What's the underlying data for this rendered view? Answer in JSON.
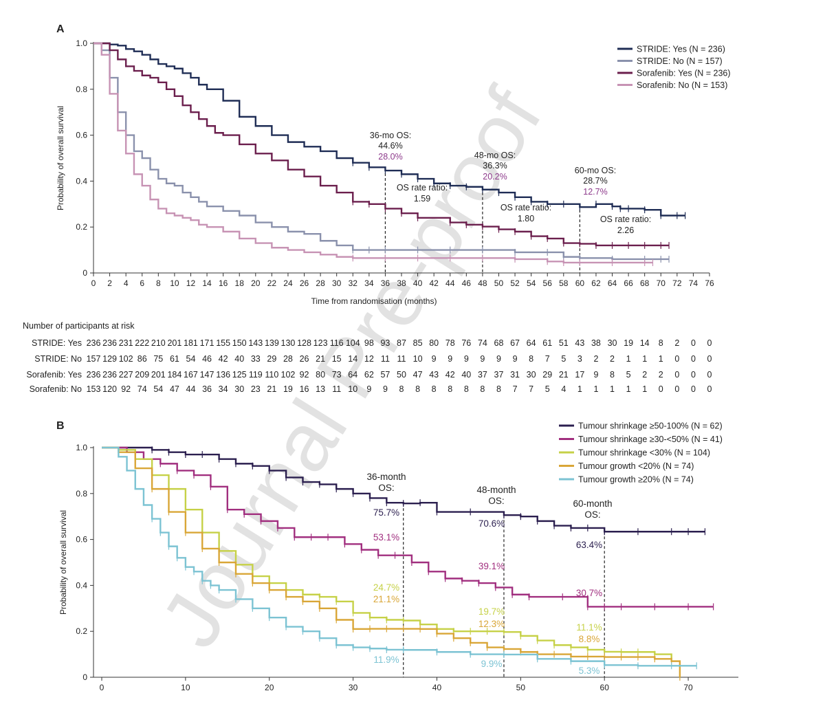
{
  "watermark": "Journal Pre-proof",
  "chart_data": [
    {
      "panel": "A",
      "type": "line",
      "xlabel": "Time from randomisation (months)",
      "ylabel": "Probability of overall survival",
      "xlim": [
        0,
        76
      ],
      "ylim": [
        0,
        1.0
      ],
      "xticks": [
        "0",
        "2",
        "4",
        "6",
        "8",
        "10",
        "12",
        "14",
        "16",
        "18",
        "20",
        "22",
        "24",
        "26",
        "28",
        "30",
        "32",
        "34",
        "36",
        "38",
        "40",
        "42",
        "44",
        "46",
        "48",
        "50",
        "52",
        "54",
        "56",
        "58",
        "60",
        "62",
        "64",
        "66",
        "68",
        "70",
        "72",
        "74",
        "76"
      ],
      "yticks": [
        "0",
        "0.2",
        "0.4",
        "0.6",
        "0.8",
        "1.0"
      ],
      "series": [
        {
          "name": "STRIDE: Yes (N = 236)",
          "color": "#1f2d55",
          "x": [
            0,
            2,
            3,
            4,
            5,
            6,
            7,
            8,
            9,
            10,
            11,
            12,
            13,
            14,
            16,
            18,
            20,
            22,
            24,
            26,
            28,
            30,
            32,
            34,
            36,
            38,
            40,
            42,
            44,
            46,
            48,
            50,
            52,
            54,
            56,
            58,
            60,
            62,
            64,
            65,
            66,
            68,
            70,
            72,
            73
          ],
          "y": [
            1.0,
            0.995,
            0.99,
            0.975,
            0.965,
            0.95,
            0.93,
            0.91,
            0.9,
            0.89,
            0.87,
            0.85,
            0.82,
            0.8,
            0.75,
            0.68,
            0.64,
            0.6,
            0.57,
            0.55,
            0.53,
            0.5,
            0.48,
            0.46,
            0.446,
            0.43,
            0.41,
            0.39,
            0.38,
            0.375,
            0.363,
            0.35,
            0.33,
            0.31,
            0.3,
            0.3,
            0.287,
            0.3,
            0.29,
            0.28,
            0.28,
            0.275,
            0.25,
            0.25,
            0.25
          ]
        },
        {
          "name": "STRIDE: No (N = 157)",
          "color": "#8a91ac",
          "x": [
            0,
            1,
            2,
            3,
            4,
            5,
            6,
            7,
            8,
            9,
            10,
            11,
            12,
            13,
            14,
            16,
            18,
            20,
            22,
            24,
            26,
            28,
            30,
            32,
            34,
            36,
            40,
            44,
            48,
            52,
            56,
            58,
            60,
            64,
            68,
            70,
            71
          ],
          "y": [
            1.0,
            0.97,
            0.85,
            0.7,
            0.6,
            0.53,
            0.5,
            0.45,
            0.41,
            0.39,
            0.38,
            0.35,
            0.33,
            0.31,
            0.29,
            0.27,
            0.25,
            0.22,
            0.2,
            0.18,
            0.17,
            0.14,
            0.12,
            0.1,
            0.1,
            0.1,
            0.1,
            0.1,
            0.1,
            0.09,
            0.09,
            0.07,
            0.065,
            0.06,
            0.06,
            0.06,
            0.06
          ]
        },
        {
          "name": "Sorafenib: Yes (N = 236)",
          "color": "#6b1f4d",
          "x": [
            0,
            1,
            2,
            3,
            4,
            5,
            6,
            7,
            8,
            9,
            10,
            11,
            12,
            13,
            14,
            15,
            16,
            18,
            20,
            22,
            24,
            26,
            28,
            30,
            32,
            34,
            36,
            38,
            40,
            44,
            46,
            48,
            50,
            52,
            54,
            56,
            58,
            60,
            62,
            64,
            66,
            68,
            70,
            71
          ],
          "y": [
            1.0,
            1.0,
            0.97,
            0.93,
            0.9,
            0.88,
            0.86,
            0.85,
            0.83,
            0.8,
            0.77,
            0.73,
            0.7,
            0.67,
            0.64,
            0.61,
            0.6,
            0.56,
            0.52,
            0.49,
            0.45,
            0.42,
            0.38,
            0.35,
            0.31,
            0.3,
            0.28,
            0.26,
            0.24,
            0.22,
            0.21,
            0.202,
            0.19,
            0.18,
            0.16,
            0.15,
            0.13,
            0.127,
            0.12,
            0.12,
            0.12,
            0.12,
            0.12,
            0.12
          ]
        },
        {
          "name": "Sorafenib: No (N = 153)",
          "color": "#c793b4",
          "x": [
            0,
            1,
            2,
            3,
            4,
            5,
            6,
            7,
            8,
            9,
            10,
            11,
            12,
            13,
            14,
            16,
            18,
            20,
            22,
            24,
            26,
            28,
            30,
            32,
            36,
            40,
            44,
            48,
            52,
            56,
            58,
            60,
            64,
            68,
            69
          ],
          "y": [
            1.0,
            0.95,
            0.78,
            0.62,
            0.52,
            0.43,
            0.38,
            0.32,
            0.28,
            0.26,
            0.25,
            0.24,
            0.23,
            0.21,
            0.2,
            0.18,
            0.15,
            0.13,
            0.11,
            0.1,
            0.09,
            0.08,
            0.07,
            0.065,
            0.065,
            0.065,
            0.065,
            0.065,
            0.06,
            0.05,
            0.045,
            0.045,
            0.045,
            0.045,
            0.045
          ]
        }
      ],
      "legend": [
        "STRIDE: Yes (N = 236)",
        "STRIDE: No (N = 157)",
        "Sorafenib: Yes (N = 236)",
        "Sorafenib: No (N = 153)"
      ],
      "annotations": [
        {
          "title": "36-mo OS:",
          "v1": "44.6%",
          "v2": "28.0%",
          "ratio_label": "OS rate ratio:",
          "ratio": "1.59",
          "x": 36
        },
        {
          "title": "48-mo OS:",
          "v1": "36.3%",
          "v2": "20.2%",
          "ratio_label": "OS rate ratio:",
          "ratio": "1.80",
          "x": 48
        },
        {
          "title": "60-mo OS:",
          "v1": "28.7%",
          "v2": "12.7%",
          "ratio_label": "OS rate ratio:",
          "ratio": "2.26",
          "x": 60
        }
      ]
    },
    {
      "panel": "B",
      "type": "line",
      "xlabel": "",
      "ylabel": "Probability of overall survival",
      "xlim": [
        0,
        75
      ],
      "ylim": [
        0,
        1.0
      ],
      "xticks": [
        "0",
        "10",
        "20",
        "30",
        "40",
        "50",
        "60",
        "70"
      ],
      "yticks": [
        "0",
        "0.2",
        "0.4",
        "0.6",
        "0.8",
        "1.0"
      ],
      "series": [
        {
          "name": "Tumour shrinkage ≥50-100% (N = 62)",
          "color": "#2b1f4f",
          "x": [
            0,
            4,
            6,
            8,
            10,
            12,
            14,
            16,
            18,
            20,
            22,
            24,
            26,
            28,
            30,
            32,
            34,
            36,
            38,
            40,
            44,
            48,
            50,
            52,
            54,
            56,
            58,
            60,
            64,
            68,
            70,
            72
          ],
          "y": [
            1.0,
            1.0,
            0.99,
            0.98,
            0.97,
            0.97,
            0.95,
            0.93,
            0.92,
            0.9,
            0.87,
            0.85,
            0.84,
            0.82,
            0.8,
            0.78,
            0.76,
            0.757,
            0.76,
            0.72,
            0.72,
            0.706,
            0.7,
            0.68,
            0.66,
            0.65,
            0.65,
            0.634,
            0.634,
            0.634,
            0.634,
            0.634
          ]
        },
        {
          "name": "Tumour shrinkage ≥30-<50% (N = 41)",
          "color": "#a12f7f",
          "x": [
            0,
            3,
            5,
            7,
            9,
            11,
            13,
            15,
            17,
            19,
            21,
            23,
            25,
            27,
            29,
            31,
            33,
            35,
            37,
            39,
            41,
            43,
            45,
            47,
            49,
            51,
            55,
            58,
            60,
            62,
            66,
            70,
            73
          ],
          "y": [
            1.0,
            0.98,
            0.95,
            0.93,
            0.9,
            0.88,
            0.83,
            0.73,
            0.71,
            0.68,
            0.65,
            0.61,
            0.61,
            0.61,
            0.58,
            0.555,
            0.531,
            0.531,
            0.5,
            0.46,
            0.43,
            0.42,
            0.41,
            0.391,
            0.36,
            0.35,
            0.35,
            0.307,
            0.307,
            0.307,
            0.307,
            0.307,
            0.307
          ]
        },
        {
          "name": "Tumour shrinkage <30% (N = 104)",
          "color": "#c6d147",
          "x": [
            0,
            2,
            4,
            6,
            8,
            10,
            12,
            14,
            16,
            18,
            20,
            22,
            24,
            26,
            28,
            30,
            32,
            34,
            36,
            38,
            40,
            42,
            44,
            46,
            48,
            50,
            52,
            54,
            56,
            58,
            60,
            62,
            64,
            66,
            68
          ],
          "y": [
            1.0,
            0.99,
            0.95,
            0.88,
            0.82,
            0.73,
            0.63,
            0.55,
            0.49,
            0.44,
            0.41,
            0.38,
            0.36,
            0.35,
            0.33,
            0.28,
            0.26,
            0.25,
            0.247,
            0.23,
            0.21,
            0.2,
            0.2,
            0.2,
            0.197,
            0.18,
            0.16,
            0.14,
            0.13,
            0.12,
            0.111,
            0.11,
            0.11,
            0.1,
            0.08
          ]
        },
        {
          "name": "Tumour growth <20% (N = 74)",
          "color": "#d9a637",
          "x": [
            0,
            2,
            4,
            6,
            8,
            10,
            12,
            14,
            16,
            18,
            20,
            22,
            24,
            26,
            28,
            30,
            32,
            34,
            36,
            38,
            40,
            42,
            44,
            46,
            48,
            50,
            52,
            54,
            56,
            58,
            60,
            62,
            64,
            66,
            68,
            69
          ],
          "y": [
            1.0,
            0.98,
            0.91,
            0.82,
            0.72,
            0.63,
            0.56,
            0.5,
            0.45,
            0.41,
            0.38,
            0.35,
            0.33,
            0.3,
            0.25,
            0.21,
            0.211,
            0.211,
            0.211,
            0.21,
            0.19,
            0.17,
            0.15,
            0.13,
            0.123,
            0.11,
            0.1,
            0.1,
            0.09,
            0.09,
            0.088,
            0.088,
            0.088,
            0.08,
            0.07,
            0.0
          ]
        },
        {
          "name": "Tumour growth ≥20% (N = 74)",
          "color": "#7cc3d3",
          "x": [
            0,
            2,
            3,
            4,
            5,
            6,
            7,
            8,
            9,
            10,
            11,
            12,
            13,
            14,
            16,
            18,
            20,
            22,
            24,
            26,
            28,
            30,
            32,
            34,
            36,
            40,
            44,
            48,
            52,
            56,
            60,
            64,
            68,
            71
          ],
          "y": [
            1.0,
            0.96,
            0.9,
            0.82,
            0.75,
            0.69,
            0.63,
            0.57,
            0.52,
            0.48,
            0.46,
            0.42,
            0.4,
            0.38,
            0.34,
            0.3,
            0.26,
            0.22,
            0.2,
            0.17,
            0.14,
            0.13,
            0.125,
            0.12,
            0.119,
            0.11,
            0.1,
            0.099,
            0.08,
            0.07,
            0.053,
            0.05,
            0.05,
            0.05
          ]
        }
      ],
      "legend": [
        "Tumour shrinkage ≥50-100% (N = 62)",
        "Tumour shrinkage ≥30-<50% (N = 41)",
        "Tumour shrinkage <30% (N = 104)",
        "Tumour growth <20% (N = 74)",
        "Tumour growth ≥20% (N = 74)"
      ],
      "annotations": [
        {
          "title1": "36-month",
          "title2": "OS:",
          "values": [
            "75.7%",
            "53.1%",
            "24.7%",
            "21.1%",
            "11.9%"
          ],
          "x": 36
        },
        {
          "title1": "48-month",
          "title2": "OS:",
          "values": [
            "70.6%",
            "39.1%",
            "19.7%",
            "12.3%",
            "9.9%"
          ],
          "x": 48
        },
        {
          "title1": "60-month",
          "title2": "OS:",
          "values": [
            "63.4%",
            "30.7%",
            "11.1%",
            "8.8%",
            "5.3%"
          ],
          "x": 60
        }
      ]
    }
  ],
  "risk_table": {
    "title": "Number of participants at risk",
    "rows": [
      {
        "label": "STRIDE: Yes",
        "values": [
          "236",
          "236",
          "231",
          "222",
          "210",
          "201",
          "181",
          "171",
          "155",
          "150",
          "143",
          "139",
          "130",
          "128",
          "123",
          "116",
          "104",
          "98",
          "93",
          "87",
          "85",
          "80",
          "78",
          "76",
          "74",
          "68",
          "67",
          "64",
          "61",
          "51",
          "43",
          "38",
          "30",
          "19",
          "14",
          "8",
          "2",
          "0",
          "0"
        ]
      },
      {
        "label": "STRIDE: No",
        "values": [
          "157",
          "129",
          "102",
          "86",
          "75",
          "61",
          "54",
          "46",
          "42",
          "40",
          "33",
          "29",
          "28",
          "26",
          "21",
          "15",
          "14",
          "12",
          "11",
          "11",
          "10",
          "9",
          "9",
          "9",
          "9",
          "9",
          "9",
          "8",
          "7",
          "5",
          "3",
          "2",
          "2",
          "1",
          "1",
          "1",
          "0",
          "0",
          "0"
        ]
      },
      {
        "label": "Sorafenib: Yes",
        "values": [
          "236",
          "236",
          "227",
          "209",
          "201",
          "184",
          "167",
          "147",
          "136",
          "125",
          "119",
          "110",
          "102",
          "92",
          "80",
          "73",
          "64",
          "62",
          "57",
          "50",
          "47",
          "43",
          "42",
          "40",
          "37",
          "37",
          "31",
          "30",
          "29",
          "21",
          "17",
          "9",
          "8",
          "5",
          "2",
          "2",
          "0",
          "0",
          "0"
        ]
      },
      {
        "label": "Sorafenib: No",
        "values": [
          "153",
          "120",
          "92",
          "74",
          "54",
          "47",
          "44",
          "36",
          "34",
          "30",
          "23",
          "21",
          "19",
          "16",
          "13",
          "11",
          "10",
          "9",
          "9",
          "8",
          "8",
          "8",
          "8",
          "8",
          "8",
          "8",
          "7",
          "7",
          "5",
          "4",
          "1",
          "1",
          "1",
          "1",
          "1",
          "0",
          "0",
          "0",
          "0"
        ]
      }
    ]
  }
}
